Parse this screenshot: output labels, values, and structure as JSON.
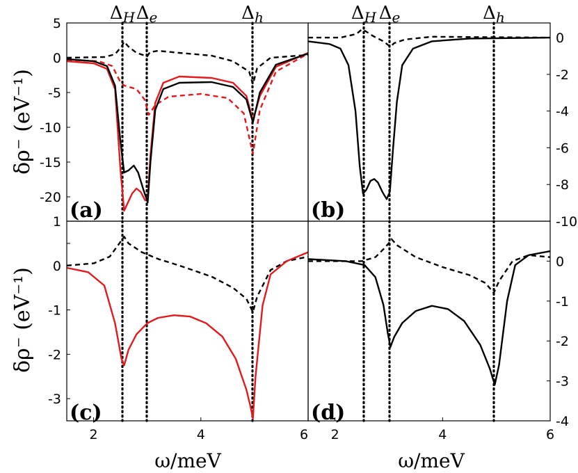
{
  "figure": {
    "ylabel_top": "δρ⁻ (eV⁻¹)",
    "ylabel_bottom": "δρ⁻ (eV⁻¹)",
    "xlabel_left": "ω/meV",
    "xlabel_right": "ω/meV",
    "markers": [
      {
        "label": "Δ",
        "sub": "H",
        "x": 2.56
      },
      {
        "label": "Δ",
        "sub": "e",
        "x": 3.03
      },
      {
        "label": "Δ",
        "sub": "h",
        "x": 4.97
      }
    ]
  },
  "colors": {
    "black": "#000000",
    "red": "#e31a1c"
  },
  "chart_data": [
    {
      "panel": "(a)",
      "type": "line",
      "xlim": [
        1.5,
        6
      ],
      "ylim": [
        -23.5,
        5
      ],
      "yticks": [
        5,
        0,
        -5,
        -10,
        -15,
        -20
      ],
      "ytick_labels": [
        "5",
        "0",
        "-5",
        "-10",
        "-15",
        "-20"
      ],
      "grid": false,
      "series": [
        {
          "color": "black",
          "dash": "dashed",
          "points": [
            [
              1.5,
              0.0
            ],
            [
              2.2,
              0.1
            ],
            [
              2.4,
              0.5
            ],
            [
              2.52,
              1.6
            ],
            [
              2.57,
              2.3
            ],
            [
              2.65,
              1.6
            ],
            [
              2.8,
              0.7
            ],
            [
              3.0,
              0.2
            ],
            [
              3.05,
              0.8
            ],
            [
              3.2,
              1.0
            ],
            [
              3.6,
              0.7
            ],
            [
              4.2,
              0.3
            ],
            [
              4.6,
              -0.5
            ],
            [
              4.9,
              -2.0
            ],
            [
              4.97,
              -3.8
            ],
            [
              5.05,
              -1.5
            ],
            [
              5.3,
              0.0
            ],
            [
              6.0,
              0.4
            ]
          ]
        },
        {
          "color": "red",
          "dash": "dashed",
          "points": [
            [
              1.5,
              -0.3
            ],
            [
              2.1,
              -0.5
            ],
            [
              2.35,
              -1.2
            ],
            [
              2.5,
              -3.5
            ],
            [
              2.57,
              -4.0
            ],
            [
              2.8,
              -4.5
            ],
            [
              2.95,
              -6.0
            ],
            [
              3.03,
              -8.2
            ],
            [
              3.15,
              -6.8
            ],
            [
              3.4,
              -5.6
            ],
            [
              4.0,
              -5.2
            ],
            [
              4.5,
              -5.8
            ],
            [
              4.8,
              -8.0
            ],
            [
              4.97,
              -13.8
            ],
            [
              5.1,
              -7.5
            ],
            [
              5.4,
              -2.0
            ],
            [
              6.0,
              0.6
            ]
          ]
        },
        {
          "color": "red",
          "dash": "solid",
          "points": [
            [
              1.5,
              -0.5
            ],
            [
              2.0,
              -0.8
            ],
            [
              2.25,
              -1.6
            ],
            [
              2.4,
              -4.5
            ],
            [
              2.5,
              -16.0
            ],
            [
              2.57,
              -22.0
            ],
            [
              2.63,
              -21.0
            ],
            [
              2.72,
              -19.5
            ],
            [
              2.8,
              -18.8
            ],
            [
              2.88,
              -19.3
            ],
            [
              2.96,
              -20.5
            ],
            [
              3.01,
              -20.3
            ],
            [
              3.06,
              -14.0
            ],
            [
              3.15,
              -6.5
            ],
            [
              3.3,
              -3.6
            ],
            [
              3.6,
              -2.7
            ],
            [
              4.2,
              -2.9
            ],
            [
              4.6,
              -3.6
            ],
            [
              4.85,
              -5.5
            ],
            [
              4.97,
              -9.0
            ],
            [
              5.1,
              -5.5
            ],
            [
              5.4,
              -1.3
            ],
            [
              6.0,
              0.7
            ]
          ]
        },
        {
          "color": "black",
          "dash": "solid",
          "points": [
            [
              1.5,
              -0.2
            ],
            [
              2.0,
              -0.5
            ],
            [
              2.25,
              -1.2
            ],
            [
              2.4,
              -4.0
            ],
            [
              2.5,
              -12.0
            ],
            [
              2.57,
              -16.5
            ],
            [
              2.65,
              -16.2
            ],
            [
              2.75,
              -15.5
            ],
            [
              2.83,
              -16.5
            ],
            [
              2.93,
              -19.0
            ],
            [
              3.01,
              -20.8
            ],
            [
              3.06,
              -15.0
            ],
            [
              3.15,
              -7.5
            ],
            [
              3.3,
              -4.5
            ],
            [
              3.6,
              -3.6
            ],
            [
              4.2,
              -3.5
            ],
            [
              4.6,
              -4.2
            ],
            [
              4.85,
              -6.0
            ],
            [
              4.97,
              -9.3
            ],
            [
              5.1,
              -5.0
            ],
            [
              5.4,
              -1.0
            ],
            [
              6.0,
              0.6
            ]
          ]
        }
      ]
    },
    {
      "panel": "(b)",
      "type": "line",
      "xlim": [
        1.5,
        6
      ],
      "ylim": [
        -10,
        0.8
      ],
      "yticks": [
        0,
        -2,
        -4,
        -6,
        -8,
        -10
      ],
      "ytick_labels": [
        "0",
        "-2",
        "-4",
        "-6",
        "-8",
        "-10"
      ],
      "grid": false,
      "series": [
        {
          "color": "black",
          "dash": "dashed",
          "points": [
            [
              1.5,
              0.0
            ],
            [
              2.1,
              0.0
            ],
            [
              2.4,
              0.2
            ],
            [
              2.5,
              0.45
            ],
            [
              2.57,
              0.35
            ],
            [
              2.7,
              0.1
            ],
            [
              2.9,
              -0.2
            ],
            [
              3.03,
              -0.5
            ],
            [
              3.1,
              -0.3
            ],
            [
              3.3,
              -0.1
            ],
            [
              3.8,
              0.05
            ],
            [
              6.0,
              0.0
            ]
          ]
        },
        {
          "color": "black",
          "dash": "solid",
          "points": [
            [
              1.5,
              -0.2
            ],
            [
              1.9,
              -0.35
            ],
            [
              2.1,
              -0.6
            ],
            [
              2.25,
              -1.5
            ],
            [
              2.38,
              -4.0
            ],
            [
              2.46,
              -7.0
            ],
            [
              2.52,
              -8.5
            ],
            [
              2.58,
              -8.3
            ],
            [
              2.66,
              -7.8
            ],
            [
              2.73,
              -7.7
            ],
            [
              2.8,
              -7.9
            ],
            [
              2.88,
              -8.4
            ],
            [
              2.96,
              -8.8
            ],
            [
              3.02,
              -8.4
            ],
            [
              3.08,
              -6.0
            ],
            [
              3.15,
              -3.5
            ],
            [
              3.25,
              -1.5
            ],
            [
              3.45,
              -0.6
            ],
            [
              3.8,
              -0.2
            ],
            [
              4.5,
              -0.05
            ],
            [
              6.0,
              0.0
            ]
          ]
        }
      ]
    },
    {
      "panel": "(c)",
      "type": "line",
      "xlim": [
        1.5,
        6
      ],
      "ylim": [
        -3.5,
        1
      ],
      "yticks": [
        1,
        0.5,
        0,
        -1,
        -2,
        -3
      ],
      "ytick_labels": [
        "1",
        "",
        "0",
        "-1",
        "-2",
        "-3"
      ],
      "grid": false,
      "series": [
        {
          "color": "black",
          "dash": "dashed",
          "points": [
            [
              1.5,
              0.0
            ],
            [
              2.0,
              0.05
            ],
            [
              2.3,
              0.2
            ],
            [
              2.45,
              0.45
            ],
            [
              2.57,
              0.65
            ],
            [
              2.65,
              0.5
            ],
            [
              2.9,
              0.3
            ],
            [
              3.2,
              0.15
            ],
            [
              3.6,
              0.0
            ],
            [
              4.2,
              -0.25
            ],
            [
              4.6,
              -0.5
            ],
            [
              4.85,
              -0.75
            ],
            [
              4.97,
              -1.05
            ],
            [
              5.05,
              -0.7
            ],
            [
              5.3,
              -0.1
            ],
            [
              5.6,
              0.1
            ],
            [
              6.0,
              0.2
            ]
          ]
        },
        {
          "color": "red",
          "dash": "solid",
          "points": [
            [
              1.5,
              -0.05
            ],
            [
              1.9,
              -0.15
            ],
            [
              2.2,
              -0.45
            ],
            [
              2.4,
              -1.3
            ],
            [
              2.52,
              -2.1
            ],
            [
              2.57,
              -2.25
            ],
            [
              2.65,
              -1.9
            ],
            [
              2.8,
              -1.55
            ],
            [
              3.0,
              -1.3
            ],
            [
              3.2,
              -1.18
            ],
            [
              3.5,
              -1.12
            ],
            [
              3.8,
              -1.15
            ],
            [
              4.1,
              -1.3
            ],
            [
              4.4,
              -1.6
            ],
            [
              4.65,
              -2.1
            ],
            [
              4.85,
              -2.8
            ],
            [
              4.93,
              -3.2
            ],
            [
              4.97,
              -3.45
            ],
            [
              5.02,
              -2.5
            ],
            [
              5.15,
              -0.9
            ],
            [
              5.3,
              -0.2
            ],
            [
              5.6,
              0.1
            ],
            [
              6.0,
              0.3
            ]
          ]
        }
      ]
    },
    {
      "panel": "(d)",
      "type": "line",
      "xlim": [
        1.5,
        6
      ],
      "ylim": [
        -4,
        1
      ],
      "yticks": [
        0,
        -1,
        -2,
        -3,
        -4
      ],
      "ytick_labels": [
        "0",
        "-1",
        "-2",
        "-3",
        "-4"
      ],
      "grid": false,
      "series": [
        {
          "color": "black",
          "dash": "dashed",
          "points": [
            [
              1.5,
              0.0
            ],
            [
              2.5,
              0.0
            ],
            [
              2.75,
              0.1
            ],
            [
              2.9,
              0.3
            ],
            [
              3.0,
              0.45
            ],
            [
              3.05,
              0.55
            ],
            [
              3.15,
              0.4
            ],
            [
              3.5,
              0.1
            ],
            [
              4.0,
              -0.15
            ],
            [
              4.5,
              -0.35
            ],
            [
              4.8,
              -0.55
            ],
            [
              4.95,
              -0.8
            ],
            [
              5.05,
              -0.5
            ],
            [
              5.3,
              0.0
            ],
            [
              5.6,
              0.15
            ],
            [
              6.0,
              0.1
            ]
          ]
        },
        {
          "color": "black",
          "dash": "solid",
          "points": [
            [
              1.5,
              0.05
            ],
            [
              2.2,
              0.0
            ],
            [
              2.55,
              -0.1
            ],
            [
              2.75,
              -0.4
            ],
            [
              2.9,
              -1.1
            ],
            [
              2.98,
              -1.8
            ],
            [
              3.03,
              -2.15
            ],
            [
              3.1,
              -1.9
            ],
            [
              3.25,
              -1.55
            ],
            [
              3.5,
              -1.25
            ],
            [
              3.8,
              -1.12
            ],
            [
              4.1,
              -1.2
            ],
            [
              4.4,
              -1.5
            ],
            [
              4.7,
              -2.1
            ],
            [
              4.88,
              -2.7
            ],
            [
              4.97,
              -3.1
            ],
            [
              5.05,
              -2.6
            ],
            [
              5.2,
              -1.0
            ],
            [
              5.35,
              -0.1
            ],
            [
              5.6,
              0.15
            ],
            [
              6.0,
              0.25
            ]
          ]
        }
      ]
    }
  ]
}
